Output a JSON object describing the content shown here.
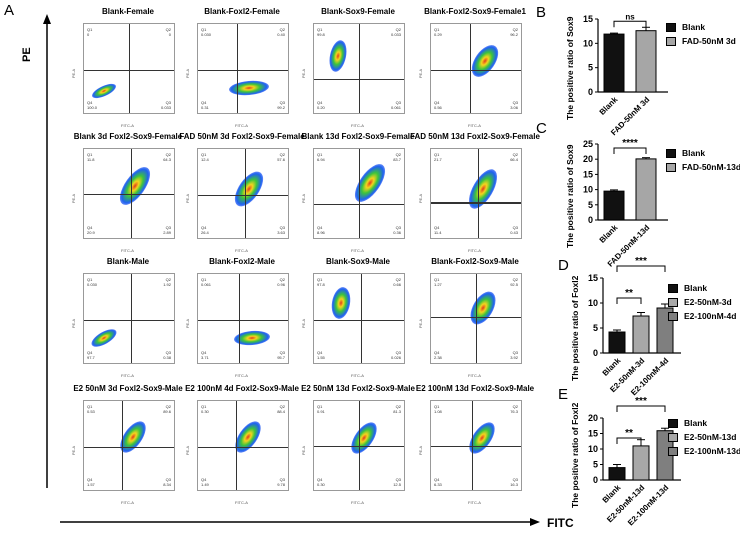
{
  "panel_labels": {
    "a": "A",
    "b": "B",
    "c": "C",
    "d": "D",
    "e": "E"
  },
  "axes": {
    "pe": "PE",
    "fitc": "FITC",
    "plot_x": "FITC-A",
    "plot_y": "PE-A"
  },
  "quadrant_names": [
    "Q1",
    "Q2",
    "Q3",
    "Q4"
  ],
  "panel_a": {
    "plots": [
      {
        "title": "Blank-Female",
        "q": [
          "0",
          "0",
          "0.033",
          "100.0"
        ]
      },
      {
        "title": "Blank-Foxl2-Female",
        "q": [
          "0.030",
          "0.40",
          "99.2",
          "0.31"
        ]
      },
      {
        "title": "Blank-Sox9-Female",
        "q": [
          "99.8",
          "0.033",
          "0.061",
          "0.20"
        ]
      },
      {
        "title": "Blank-Foxl2-Sox9-Female1",
        "q": [
          "0.29",
          "96.2",
          "3.06",
          "0.56"
        ]
      },
      {
        "title": "Blank 3d Foxl2-Sox9-Female",
        "q": [
          "11.8",
          "64.3",
          "2.89",
          "20.9"
        ]
      },
      {
        "title": "FAD 50nM 3d Foxl2-Sox9-Female",
        "q": [
          "12.4",
          "57.6",
          "3.63",
          "26.4"
        ]
      },
      {
        "title": "Blank 13d Foxl2-Sox9-Female",
        "q": [
          "6.94",
          "83.7",
          "0.36",
          "8.96"
        ]
      },
      {
        "title": "FAD 50nM 13d Foxl2-Sox9-Female",
        "q": [
          "21.7",
          "66.4",
          "0.43",
          "11.4"
        ]
      },
      {
        "title": "Blank-Male",
        "q": [
          "0.030",
          "1.92",
          "0.38",
          "97.7"
        ]
      },
      {
        "title": "Blank-Foxl2-Male",
        "q": [
          "0.061",
          "0.96",
          "95.7",
          "3.71"
        ]
      },
      {
        "title": "Blank-Sox9-Male",
        "q": [
          "97.8",
          "0.66",
          "0.026",
          "1.55"
        ]
      },
      {
        "title": "Blank-Foxl2-Sox9-Male",
        "q": [
          "1.27",
          "92.5",
          "3.92",
          "2.38"
        ]
      },
      {
        "title": "E2 50nM 3d Foxl2-Sox9-Male",
        "q": [
          "0.53",
          "89.6",
          "8.34",
          "1.57"
        ]
      },
      {
        "title": "E2 100nM 4d Foxl2-Sox9-Male",
        "q": [
          "0.30",
          "88.4",
          "9.78",
          "1.49"
        ]
      },
      {
        "title": "E2 50nM 13d Foxl2-Sox9-Male",
        "q": [
          "0.91",
          "81.3",
          "12.5",
          "0.30"
        ]
      },
      {
        "title": "E2 100nM 13d Foxl2-Sox9-Male",
        "q": [
          "1.08",
          "76.3",
          "16.3",
          "6.33"
        ]
      }
    ]
  },
  "chart_data": [
    {
      "type": "bar",
      "panel": "B",
      "ylabel": "The positive ratio of Sox9",
      "ylim": [
        0,
        15
      ],
      "yticks": [
        0,
        5,
        10,
        15
      ],
      "categories": [
        "Blank",
        "FAD-50nM 3d"
      ],
      "values": [
        11.9,
        12.6
      ],
      "errors": [
        0.2,
        0.7
      ],
      "colors": [
        "#111111",
        "#a6a6a6"
      ],
      "legend": [
        "Blank",
        "FAD-50nM 3d"
      ],
      "significance": [
        {
          "from": 0,
          "to": 1,
          "label": "ns"
        }
      ]
    },
    {
      "type": "bar",
      "panel": "C",
      "ylabel": "The positive ratio of Sox9",
      "ylim": [
        0,
        25
      ],
      "yticks": [
        0,
        5,
        10,
        15,
        20,
        25
      ],
      "categories": [
        "Blank",
        "FAD-50nM-13d"
      ],
      "values": [
        9.5,
        20.1
      ],
      "errors": [
        0.4,
        0.4
      ],
      "colors": [
        "#111111",
        "#a6a6a6"
      ],
      "legend": [
        "Blank",
        "FAD-50nM-13d"
      ],
      "significance": [
        {
          "from": 0,
          "to": 1,
          "label": "****"
        }
      ]
    },
    {
      "type": "bar",
      "panel": "D",
      "ylabel": "The positive ratio of Foxl2",
      "ylim": [
        0,
        15
      ],
      "yticks": [
        0,
        5,
        10,
        15
      ],
      "categories": [
        "Blank",
        "E2-50nM-3d",
        "E2-100nM-4d"
      ],
      "values": [
        4.2,
        7.4,
        9.0
      ],
      "errors": [
        0.4,
        0.7,
        0.8
      ],
      "colors": [
        "#111111",
        "#a8a8a8",
        "#7f7f7f"
      ],
      "legend": [
        "Blank",
        "E2-50nM-3d",
        "E2-100nM-4d"
      ],
      "significance": [
        {
          "from": 0,
          "to": 1,
          "label": "**"
        },
        {
          "from": 0,
          "to": 2,
          "label": "***"
        }
      ]
    },
    {
      "type": "bar",
      "panel": "E",
      "ylabel": "The positive ratio of Foxl2",
      "ylim": [
        0,
        20
      ],
      "yticks": [
        0,
        5,
        10,
        15,
        20
      ],
      "categories": [
        "Blank",
        "E2-50nM-13d",
        "E2-100nM-13d"
      ],
      "values": [
        4.0,
        11.0,
        15.9
      ],
      "errors": [
        1.0,
        2.0,
        0.8
      ],
      "colors": [
        "#111111",
        "#a8a8a8",
        "#7f7f7f"
      ],
      "legend": [
        "Blank",
        "E2-50nM-13d",
        "E2-100nM-13d"
      ],
      "significance": [
        {
          "from": 0,
          "to": 1,
          "label": "**"
        },
        {
          "from": 0,
          "to": 2,
          "label": "***"
        }
      ]
    }
  ]
}
